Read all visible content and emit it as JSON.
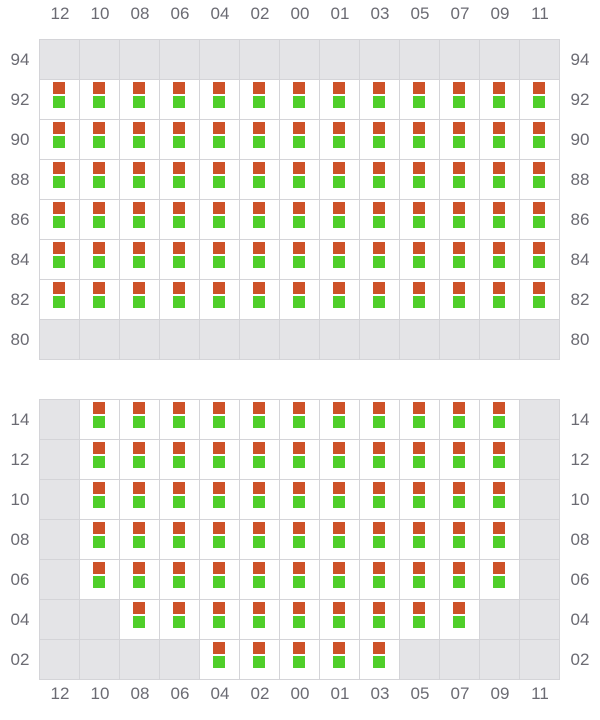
{
  "colors": {
    "inactive": "#e4e4e7",
    "active": "#ffffff",
    "marker_top": "#cd5128",
    "marker_bottom": "#4fcf2a",
    "grid_line": "#d4d4d8"
  },
  "columns": [
    "12",
    "10",
    "08",
    "06",
    "04",
    "02",
    "00",
    "01",
    "03",
    "05",
    "07",
    "09",
    "11"
  ],
  "grids": [
    {
      "rows": [
        {
          "label": "94",
          "active": []
        },
        {
          "label": "92",
          "active": [
            0,
            12
          ]
        },
        {
          "label": "90",
          "active": [
            0,
            12
          ]
        },
        {
          "label": "88",
          "active": [
            0,
            12
          ]
        },
        {
          "label": "86",
          "active": [
            0,
            12
          ]
        },
        {
          "label": "84",
          "active": [
            0,
            12
          ]
        },
        {
          "label": "82",
          "active": [
            0,
            12
          ]
        },
        {
          "label": "80",
          "active": []
        }
      ]
    },
    {
      "rows": [
        {
          "label": "14",
          "active": [
            1,
            11
          ]
        },
        {
          "label": "12",
          "active": [
            1,
            11
          ]
        },
        {
          "label": "10",
          "active": [
            1,
            11
          ]
        },
        {
          "label": "08",
          "active": [
            1,
            11
          ]
        },
        {
          "label": "06",
          "active": [
            1,
            11
          ]
        },
        {
          "label": "04",
          "active": [
            2,
            10
          ]
        },
        {
          "label": "02",
          "active": [
            4,
            8
          ]
        }
      ]
    }
  ]
}
